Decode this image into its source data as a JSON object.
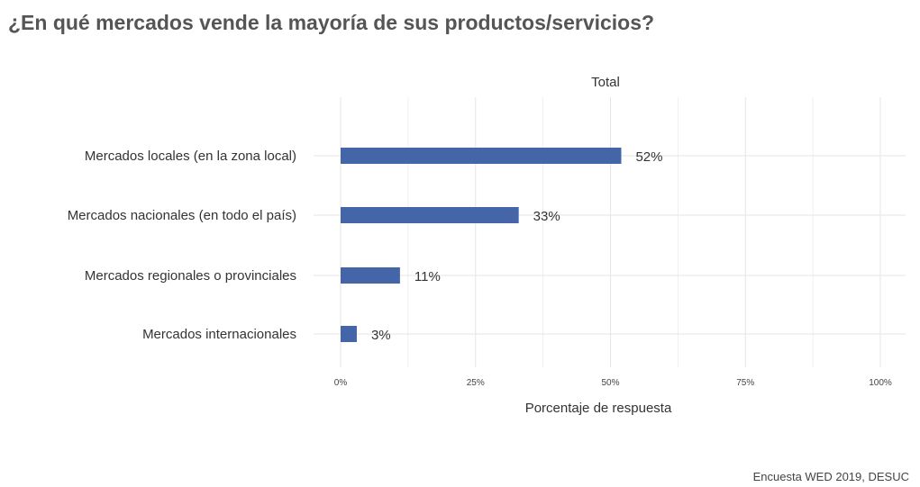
{
  "page": {
    "title": "¿En qué mercados vende la mayoría de sus productos/servicios?",
    "source": "Encuesta WED 2019, DESUC"
  },
  "colors": {
    "bar": "#4466a8",
    "grid": "#e6e6e6",
    "text": "#333333"
  },
  "chart_data": {
    "type": "bar",
    "orientation": "horizontal",
    "panel_title": "Total",
    "categories": [
      "Mercados locales (en la zona local)",
      "Mercados nacionales (en todo el país)",
      "Mercados regionales o provinciales",
      "Mercados internacionales"
    ],
    "values": [
      52,
      33,
      11,
      3
    ],
    "value_labels": [
      "52%",
      "33%",
      "11%",
      "3%"
    ],
    "xlabel": "Porcentaje de respuesta",
    "ylabel": "",
    "xlim": [
      0,
      100
    ],
    "xticks": [
      0,
      25,
      50,
      75,
      100
    ],
    "xtick_labels": [
      "0%",
      "25%",
      "50%",
      "75%",
      "100%"
    ],
    "grid": true,
    "legend": "none"
  }
}
